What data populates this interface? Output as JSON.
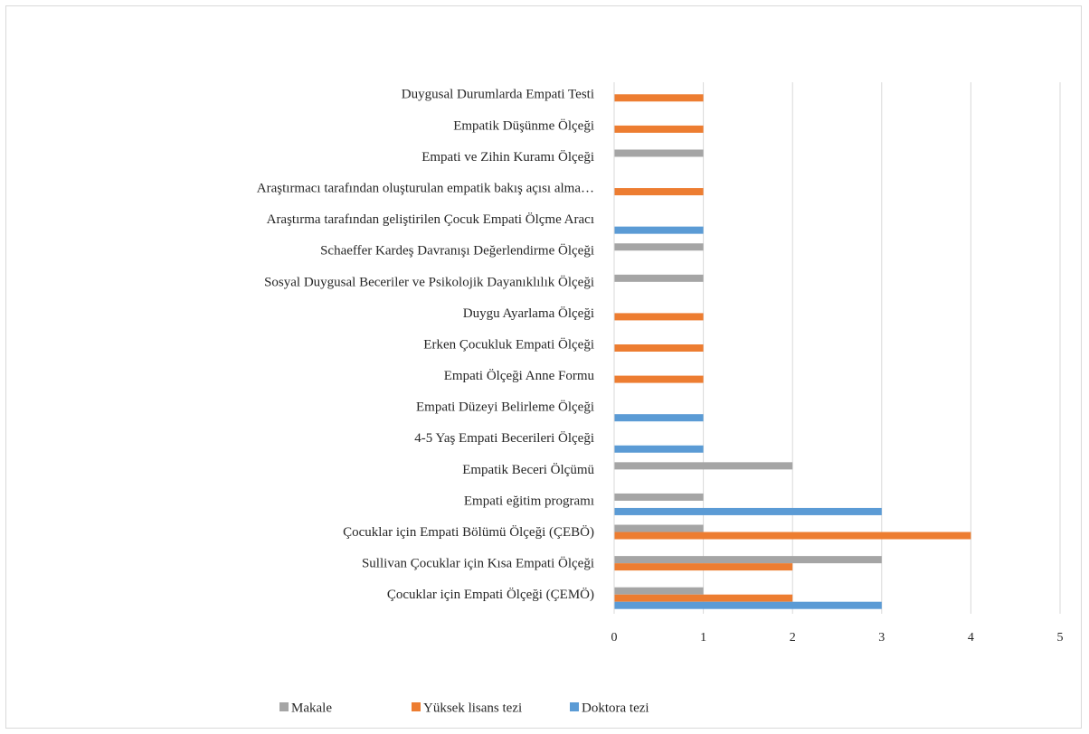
{
  "chart_data": {
    "type": "bar",
    "orientation": "horizontal",
    "categories": [
      "Duygusal Durumlarda Empati Testi",
      "Empatik Düşünme Ölçeği",
      "Empati ve Zihin Kuramı Ölçeği",
      "Araştırmacı tarafından oluşturulan empatik bakış açısı alma…",
      "Araştırma tarafından geliştirilen Çocuk Empati Ölçme Aracı",
      "Schaeffer Kardeş Davranışı Değerlendirme Ölçeği",
      "Sosyal Duygusal Beceriler ve Psikolojik Dayanıklılık Ölçeği",
      "Duygu Ayarlama Ölçeği",
      "Erken Çocukluk Empati Ölçeği",
      "Empati Ölçeği Anne Formu",
      "Empati Düzeyi Belirleme Ölçeği",
      "4-5 Yaş Empati Becerileri Ölçeği",
      "Empatik Beceri Ölçümü",
      "Empati eğitim programı",
      "Çocuklar için Empati Bölümü Ölçeği (ÇEBÖ)",
      "Sullivan Çocuklar için Kısa Empati Ölçeği",
      "Çocuklar için Empati Ölçeği (ÇEMÖ)"
    ],
    "series": [
      {
        "name": "Makale",
        "color": "#a5a5a5",
        "values": [
          0,
          0,
          1,
          0,
          0,
          1,
          1,
          0,
          0,
          0,
          0,
          0,
          2,
          1,
          1,
          3,
          1
        ]
      },
      {
        "name": "Yüksek lisans tezi",
        "color": "#ed7d31",
        "values": [
          1,
          1,
          0,
          1,
          0,
          0,
          0,
          1,
          1,
          1,
          0,
          0,
          0,
          0,
          4,
          2,
          2
        ]
      },
      {
        "name": "Doktora tezi",
        "color": "#5b9bd5",
        "values": [
          0,
          0,
          0,
          0,
          1,
          0,
          0,
          0,
          0,
          0,
          1,
          1,
          0,
          3,
          0,
          0,
          3
        ]
      }
    ],
    "xlim": [
      0,
      5
    ],
    "xticks": [
      "0",
      "1",
      "2",
      "3",
      "4",
      "5"
    ],
    "grid": true,
    "legend_position": "bottom"
  }
}
